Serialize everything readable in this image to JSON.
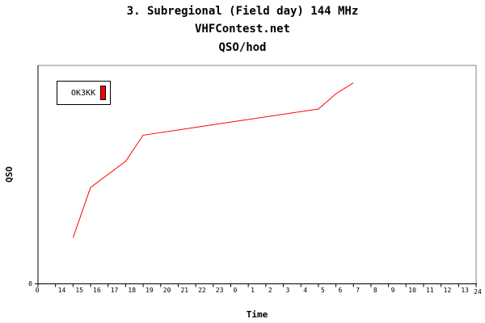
{
  "chart_data": {
    "type": "line",
    "title": "3. Subregional (Field day) 144 MHz",
    "subtitle": "VHFContest.net",
    "subtitle2": "QSO/hod",
    "xlabel": "Time",
    "ylabel": "QSO",
    "x_ticks": [
      "0",
      "14",
      "15",
      "16",
      "17",
      "18",
      "19",
      "20",
      "21",
      "22",
      "23",
      "0",
      "1",
      "2",
      "3",
      "4",
      "5",
      "6",
      "7",
      "8",
      "9",
      "10",
      "11",
      "12",
      "13",
      "24"
    ],
    "y_ticks": [
      "0"
    ],
    "ylim": [
      0,
      100
    ],
    "grid": false,
    "legend_position": "top-left",
    "series": [
      {
        "name": "OK3KK",
        "color": "#ff0000",
        "x_index": [
          2,
          3,
          5,
          6,
          16,
          17,
          18
        ],
        "values": [
          21,
          44,
          56,
          68,
          80,
          87,
          92
        ]
      }
    ]
  },
  "colors": {
    "series": "#ff0000",
    "axis": "#000000",
    "frame": "#808080"
  }
}
